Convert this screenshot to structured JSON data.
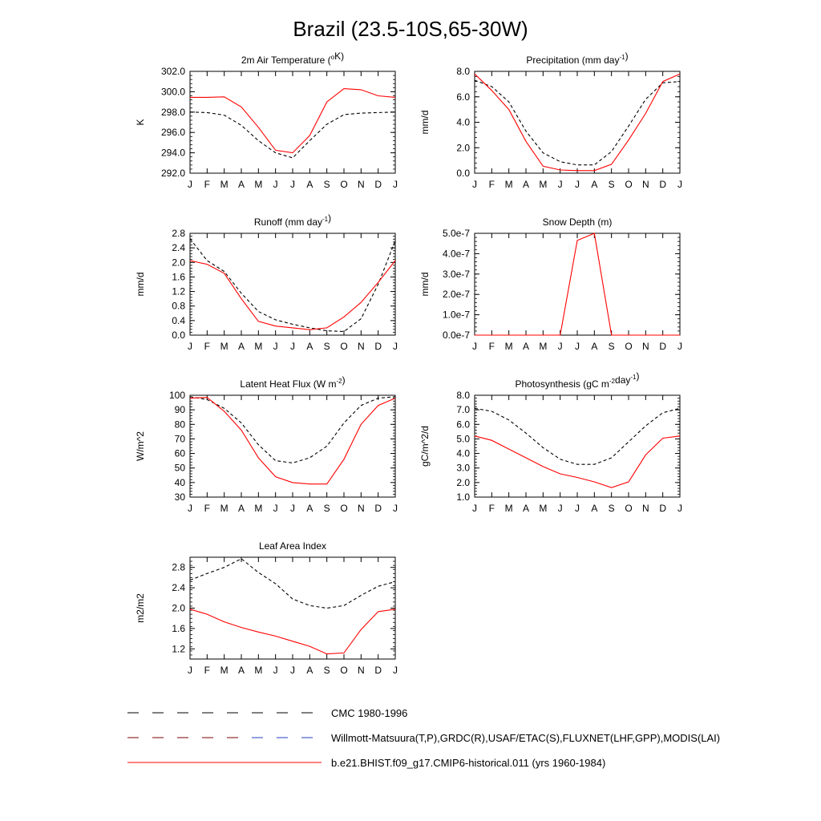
{
  "title": "Brazil (23.5-10S,65-30W)",
  "colors": {
    "model": "#ff0000",
    "obs": "#000000",
    "obs_alt": "#1f3fbf"
  },
  "legend": [
    {
      "label": "CMC 1980-1996",
      "style": "dashed",
      "color": "#000000"
    },
    {
      "label": "Willmott-Matsuura(T,P),GRDC(R),USAF/ETAC(S),FLUXNET(LHF,GPP),MODIS(LAI)",
      "style": "dashed",
      "color": "#7a0000"
    },
    {
      "label": "b.e21.BHIST.f09_g17.CMIP6-historical.011 (yrs 1960-1984)",
      "style": "solid",
      "color": "#ff0000"
    }
  ],
  "chart_data": [
    {
      "type": "line",
      "title": {
        "pre": "2m Air Temperature (",
        "sup": "o",
        "post": "K)"
      },
      "ylabel": "K",
      "x": [
        "J",
        "F",
        "M",
        "A",
        "M",
        "J",
        "J",
        "A",
        "S",
        "O",
        "N",
        "D",
        "J"
      ],
      "ylim": [
        292,
        302
      ],
      "yticks": [
        "292.0",
        "294.0",
        "296.0",
        "298.0",
        "300.0",
        "302.0"
      ],
      "series": [
        {
          "role": "obs",
          "values": [
            298.0,
            297.95,
            297.7,
            296.7,
            295.2,
            294.0,
            293.5,
            295.2,
            296.8,
            297.75,
            297.9,
            297.95,
            298.0
          ]
        },
        {
          "role": "model",
          "values": [
            299.45,
            299.45,
            299.5,
            298.5,
            296.5,
            294.25,
            294.0,
            295.7,
            299.0,
            300.3,
            300.2,
            299.6,
            299.45
          ]
        }
      ]
    },
    {
      "type": "line",
      "title": {
        "pre": "Precipitation (mm day",
        "sup": "-1",
        "post": ")"
      },
      "ylabel": "mm/d",
      "x": [
        "J",
        "F",
        "M",
        "A",
        "M",
        "J",
        "J",
        "A",
        "S",
        "O",
        "N",
        "D",
        "J"
      ],
      "ylim": [
        0,
        8
      ],
      "yticks": [
        "0.0",
        "2.0",
        "4.0",
        "6.0",
        "8.0"
      ],
      "series": [
        {
          "role": "obs",
          "values": [
            7.3,
            6.8,
            5.6,
            3.3,
            1.6,
            0.9,
            0.65,
            0.65,
            1.7,
            3.7,
            5.8,
            7.1,
            7.2
          ]
        },
        {
          "role": "model",
          "values": [
            7.8,
            6.5,
            5.0,
            2.5,
            0.55,
            0.25,
            0.2,
            0.2,
            0.7,
            2.6,
            4.7,
            7.2,
            7.8
          ]
        }
      ]
    },
    {
      "type": "line",
      "title": {
        "pre": "Runoff (mm day",
        "sup": "-1",
        "post": ")"
      },
      "ylabel": "mm/d",
      "x": [
        "J",
        "F",
        "M",
        "A",
        "M",
        "J",
        "J",
        "A",
        "S",
        "O",
        "N",
        "D",
        "J"
      ],
      "ylim": [
        0,
        2.8
      ],
      "yticks": [
        "0.0",
        "0.4",
        "0.8",
        "1.2",
        "1.6",
        "2.0",
        "2.4",
        "2.8"
      ],
      "series": [
        {
          "role": "obs",
          "values": [
            2.65,
            2.05,
            1.75,
            1.15,
            0.65,
            0.42,
            0.3,
            0.2,
            0.12,
            0.1,
            0.45,
            1.4,
            2.6
          ]
        },
        {
          "role": "model",
          "values": [
            2.05,
            1.95,
            1.7,
            1.0,
            0.38,
            0.25,
            0.2,
            0.15,
            0.2,
            0.5,
            0.9,
            1.45,
            2.05
          ]
        }
      ]
    },
    {
      "type": "line",
      "title": {
        "pre": "Snow Depth (m)",
        "sup": "",
        "post": ""
      },
      "ylabel": "mm/d",
      "x": [
        "J",
        "F",
        "M",
        "A",
        "M",
        "J",
        "J",
        "A",
        "S",
        "O",
        "N",
        "D",
        "J"
      ],
      "ylim": [
        0,
        5e-07
      ],
      "yticks": [
        "0.0e-7",
        "1.0e-7",
        "2.0e-7",
        "3.0e-7",
        "4.0e-7",
        "5.0e-7"
      ],
      "series": [
        {
          "role": "obs",
          "values": [
            0,
            0,
            0,
            0,
            0,
            0,
            0,
            0,
            0,
            0,
            0,
            0,
            0
          ]
        },
        {
          "role": "model",
          "values": [
            0,
            0,
            0,
            0,
            0,
            0,
            4.65e-07,
            5e-07,
            0,
            0,
            0,
            0,
            0
          ]
        }
      ]
    },
    {
      "type": "line",
      "title": {
        "pre": "Latent Heat Flux (W m",
        "sup": "-2",
        "post": ")"
      },
      "ylabel": "W/m^2",
      "x": [
        "J",
        "F",
        "M",
        "A",
        "M",
        "J",
        "J",
        "A",
        "S",
        "O",
        "N",
        "D",
        "J"
      ],
      "ylim": [
        30,
        100
      ],
      "yticks": [
        "30",
        "40",
        "50",
        "60",
        "70",
        "80",
        "90",
        "100"
      ],
      "series": [
        {
          "role": "obs",
          "values": [
            99,
            97,
            91,
            81,
            66,
            55,
            53.5,
            57,
            65,
            81,
            93,
            98,
            99
          ]
        },
        {
          "role": "model",
          "values": [
            98,
            98.5,
            89,
            76,
            57,
            44,
            40,
            39,
            39,
            56,
            80,
            93,
            98
          ]
        }
      ]
    },
    {
      "type": "line",
      "title": {
        "pre": "Photosynthesis (gC m",
        "sup": "-2",
        "post": "day",
        "sup2": "-1",
        "post2": ")"
      },
      "ylabel": "gC/m^2/d",
      "x": [
        "J",
        "F",
        "M",
        "A",
        "M",
        "J",
        "J",
        "A",
        "S",
        "O",
        "N",
        "D",
        "J"
      ],
      "ylim": [
        1,
        8
      ],
      "yticks": [
        "1.0",
        "2.0",
        "3.0",
        "4.0",
        "5.0",
        "6.0",
        "7.0",
        "8.0"
      ],
      "series": [
        {
          "role": "obs",
          "values": [
            7.1,
            6.9,
            6.3,
            5.4,
            4.4,
            3.6,
            3.25,
            3.25,
            3.7,
            4.8,
            5.9,
            6.8,
            7.1
          ]
        },
        {
          "role": "model",
          "values": [
            5.2,
            4.9,
            4.3,
            3.7,
            3.1,
            2.6,
            2.35,
            2.05,
            1.65,
            2.05,
            3.9,
            5.05,
            5.2
          ]
        }
      ]
    },
    {
      "type": "line",
      "title": {
        "pre": "Leaf Area Index",
        "sup": "",
        "post": ""
      },
      "ylabel": "m2/m2",
      "x": [
        "J",
        "F",
        "M",
        "A",
        "M",
        "J",
        "J",
        "A",
        "S",
        "O",
        "N",
        "D",
        "J"
      ],
      "ylim": [
        1.0,
        3.0
      ],
      "yticks": [
        "1.2",
        "1.6",
        "2.0",
        "2.4",
        "2.8"
      ],
      "series": [
        {
          "role": "obs",
          "values": [
            2.55,
            2.68,
            2.8,
            2.97,
            2.7,
            2.48,
            2.18,
            2.05,
            2.0,
            2.05,
            2.25,
            2.43,
            2.52
          ]
        },
        {
          "role": "model",
          "values": [
            1.98,
            1.88,
            1.73,
            1.62,
            1.53,
            1.45,
            1.35,
            1.25,
            1.1,
            1.12,
            1.58,
            1.93,
            1.98
          ]
        }
      ]
    }
  ]
}
